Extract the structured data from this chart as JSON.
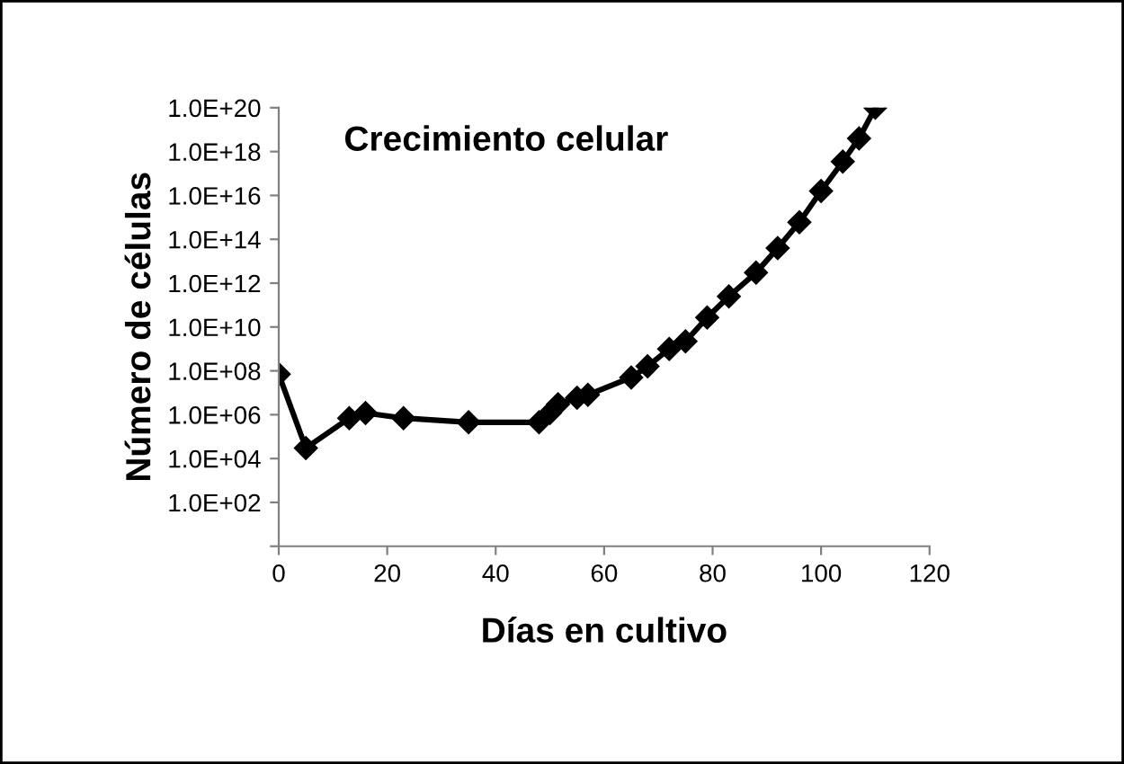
{
  "chart_data": {
    "type": "line",
    "title": "Crecimiento celular",
    "xlabel": "Días en cultivo",
    "ylabel": "Número de células",
    "x": [
      0,
      5,
      13,
      16,
      23,
      35,
      48,
      50,
      51.5,
      55,
      57,
      65,
      68,
      72,
      75,
      79,
      83,
      88,
      92,
      96,
      100,
      104,
      107,
      110
    ],
    "series": [
      {
        "color": "#000000",
        "values": [
          70000000.0,
          30000.0,
          700000.0,
          1200000.0,
          700000.0,
          450000.0,
          450000.0,
          1200000.0,
          3000000.0,
          6000000.0,
          8000000.0,
          50000000.0,
          160000000.0,
          1000000000.0,
          2200000000.0,
          27000000000.0,
          250000000000.0,
          3000000000000.0,
          40000000000000.0,
          600000000000000.0,
          1.6e+16,
          3.5e+17,
          4e+18,
          1e+20
        ]
      }
    ],
    "log": "y",
    "xlim": [
      0,
      120
    ],
    "xticks": [
      0,
      20,
      40,
      60,
      80,
      100,
      120
    ],
    "ylim": [
      1,
      1e+20
    ],
    "yticks": [
      {
        "value": 1,
        "label": null
      },
      {
        "value": 100.0,
        "label": "1.0E+02"
      },
      {
        "value": 10000.0,
        "label": "1.0E+04"
      },
      {
        "value": 1000000.0,
        "label": "1.0E+06"
      },
      {
        "value": 100000000.0,
        "label": "1.0E+08"
      },
      {
        "value": 10000000000.0,
        "label": "1.0E+10"
      },
      {
        "value": 1000000000000.0,
        "label": "1.0E+12"
      },
      {
        "value": 100000000000000.0,
        "label": "1.0E+14"
      },
      {
        "value": 1e+16,
        "label": "1.0E+16"
      },
      {
        "value": 1e+18,
        "label": "1.0E+18"
      },
      {
        "value": 1e+20,
        "label": "1.0E+20"
      }
    ],
    "grid": false,
    "legend": false,
    "marker": "diamond",
    "line_style": "solid"
  }
}
